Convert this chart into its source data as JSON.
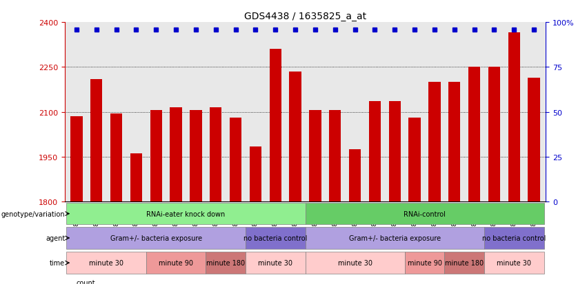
{
  "title": "GDS4438 / 1635825_a_at",
  "samples": [
    "GSM783343",
    "GSM783344",
    "GSM783345",
    "GSM783349",
    "GSM783350",
    "GSM783351",
    "GSM783355",
    "GSM783356",
    "GSM783357",
    "GSM783337",
    "GSM783338",
    "GSM783339",
    "GSM783340",
    "GSM783341",
    "GSM783342",
    "GSM783346",
    "GSM783347",
    "GSM783348",
    "GSM783352",
    "GSM783353",
    "GSM783354",
    "GSM783334",
    "GSM783335",
    "GSM783336"
  ],
  "bar_values": [
    2085,
    2210,
    2095,
    1960,
    2105,
    2115,
    2105,
    2115,
    2080,
    1985,
    2310,
    2235,
    2105,
    2105,
    1975,
    2135,
    2135,
    2080,
    2200,
    2200,
    2250,
    2250,
    2365,
    2215
  ],
  "percentile_values": [
    97,
    97,
    97,
    92,
    97,
    92,
    97,
    97,
    92,
    97,
    97,
    97,
    97,
    97,
    92,
    97,
    97,
    97,
    97,
    97,
    97,
    97,
    99,
    97
  ],
  "ymin": 1800,
  "ymax": 2400,
  "yticks": [
    1800,
    1950,
    2100,
    2250,
    2400
  ],
  "right_yticks": [
    0,
    25,
    50,
    75,
    100
  ],
  "bar_color": "#cc0000",
  "percentile_color": "#0000cc",
  "grid_color": "#000000",
  "background_color": "#e8e8e8",
  "genotype_groups": [
    {
      "label": "RNAi-eater knock down",
      "start": 0,
      "end": 12,
      "color": "#90ee90"
    },
    {
      "label": "RNAi-control",
      "start": 12,
      "end": 24,
      "color": "#66cc66"
    }
  ],
  "agent_groups": [
    {
      "label": "Gram+/- bacteria exposure",
      "start": 0,
      "end": 9,
      "color": "#b0a0e0"
    },
    {
      "label": "no bacteria control",
      "start": 9,
      "end": 12,
      "color": "#8070cc"
    },
    {
      "label": "Gram+/- bacteria exposure",
      "start": 12,
      "end": 21,
      "color": "#b0a0e0"
    },
    {
      "label": "no bacteria control",
      "start": 21,
      "end": 24,
      "color": "#8070cc"
    }
  ],
  "time_groups": [
    {
      "label": "minute 30",
      "start": 0,
      "end": 4,
      "color": "#ffcccc"
    },
    {
      "label": "minute 90",
      "start": 4,
      "end": 7,
      "color": "#ee9999"
    },
    {
      "label": "minute 180",
      "start": 7,
      "end": 9,
      "color": "#cc7777"
    },
    {
      "label": "minute 30",
      "start": 9,
      "end": 12,
      "color": "#ffcccc"
    },
    {
      "label": "minute 30",
      "start": 12,
      "end": 17,
      "color": "#ffcccc"
    },
    {
      "label": "minute 90",
      "start": 17,
      "end": 19,
      "color": "#ee9999"
    },
    {
      "label": "minute 180",
      "start": 19,
      "end": 21,
      "color": "#cc7777"
    },
    {
      "label": "minute 30",
      "start": 21,
      "end": 24,
      "color": "#ffcccc"
    }
  ],
  "left_label_color": "#cc0000",
  "right_label_color": "#0000cc",
  "row_labels": [
    "genotype/variation",
    "agent",
    "time"
  ]
}
